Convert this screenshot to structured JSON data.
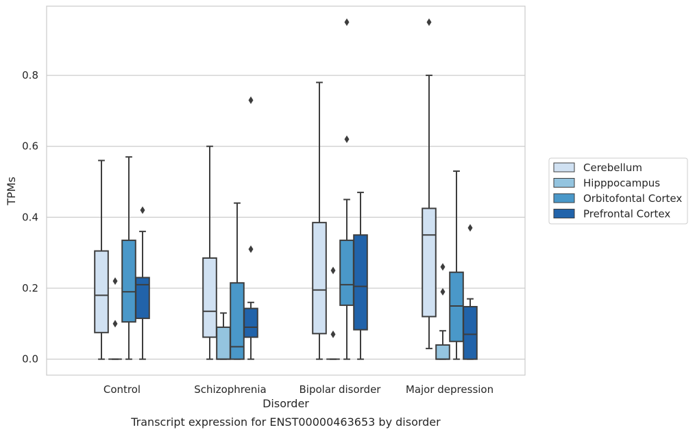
{
  "chart_data": {
    "type": "boxplot",
    "title": "",
    "caption": "Transcript expression for ENST00000463653 by disorder",
    "xlabel": "Disorder",
    "ylabel": "TPMs",
    "ylim": [
      -0.045,
      0.995
    ],
    "yticks": [
      0.0,
      0.2,
      0.4,
      0.6,
      0.8
    ],
    "ytick_labels": [
      "0.0",
      "0.2",
      "0.4",
      "0.6",
      "0.8"
    ],
    "grid": "horizontal",
    "legend_position": "right",
    "categories": [
      "Control",
      "Schizophrenia",
      "Bipolar disorder",
      "Major depression"
    ],
    "series": [
      {
        "name": "Cerebellum",
        "color": "#d0e1f2",
        "boxes": [
          {
            "whislo": 0.0,
            "q1": 0.075,
            "med": 0.18,
            "q3": 0.305,
            "whishi": 0.56,
            "fliers": []
          },
          {
            "whislo": 0.0,
            "q1": 0.062,
            "med": 0.135,
            "q3": 0.285,
            "whishi": 0.6,
            "fliers": []
          },
          {
            "whislo": 0.0,
            "q1": 0.072,
            "med": 0.195,
            "q3": 0.385,
            "whishi": 0.78,
            "fliers": []
          },
          {
            "whislo": 0.03,
            "q1": 0.12,
            "med": 0.35,
            "q3": 0.425,
            "whishi": 0.8,
            "fliers": [
              0.95
            ]
          }
        ]
      },
      {
        "name": "Hipppocampus",
        "color": "#94c4df",
        "boxes": [
          {
            "whislo": 0.0,
            "q1": 0.0,
            "med": 0.0,
            "q3": 0.0,
            "whishi": 0.0,
            "fliers": [
              0.1,
              0.22
            ]
          },
          {
            "whislo": 0.0,
            "q1": 0.0,
            "med": 0.0,
            "q3": 0.09,
            "whishi": 0.13,
            "fliers": []
          },
          {
            "whislo": 0.0,
            "q1": 0.0,
            "med": 0.0,
            "q3": 0.0,
            "whishi": 0.0,
            "fliers": [
              0.07,
              0.25
            ]
          },
          {
            "whislo": 0.0,
            "q1": 0.0,
            "med": 0.0,
            "q3": 0.04,
            "whishi": 0.08,
            "fliers": [
              0.19,
              0.26
            ]
          }
        ]
      },
      {
        "name": "Orbitofontal Cortex",
        "color": "#4a98c9",
        "boxes": [
          {
            "whislo": 0.0,
            "q1": 0.105,
            "med": 0.19,
            "q3": 0.335,
            "whishi": 0.57,
            "fliers": []
          },
          {
            "whislo": 0.0,
            "q1": 0.0,
            "med": 0.035,
            "q3": 0.215,
            "whishi": 0.44,
            "fliers": []
          },
          {
            "whislo": 0.0,
            "q1": 0.152,
            "med": 0.21,
            "q3": 0.335,
            "whishi": 0.45,
            "fliers": [
              0.62,
              0.95
            ]
          },
          {
            "whislo": 0.0,
            "q1": 0.05,
            "med": 0.15,
            "q3": 0.245,
            "whishi": 0.53,
            "fliers": []
          }
        ]
      },
      {
        "name": "Prefrontal Cortex",
        "color": "#2163aa",
        "boxes": [
          {
            "whislo": 0.0,
            "q1": 0.115,
            "med": 0.21,
            "q3": 0.23,
            "whishi": 0.36,
            "fliers": [
              0.42
            ]
          },
          {
            "whislo": 0.0,
            "q1": 0.062,
            "med": 0.09,
            "q3": 0.143,
            "whishi": 0.16,
            "fliers": [
              0.31,
              0.73
            ]
          },
          {
            "whislo": 0.0,
            "q1": 0.083,
            "med": 0.205,
            "q3": 0.35,
            "whishi": 0.47,
            "fliers": []
          },
          {
            "whislo": 0.0,
            "q1": 0.0,
            "med": 0.07,
            "q3": 0.148,
            "whishi": 0.17,
            "fliers": [
              0.37
            ]
          }
        ]
      }
    ]
  }
}
